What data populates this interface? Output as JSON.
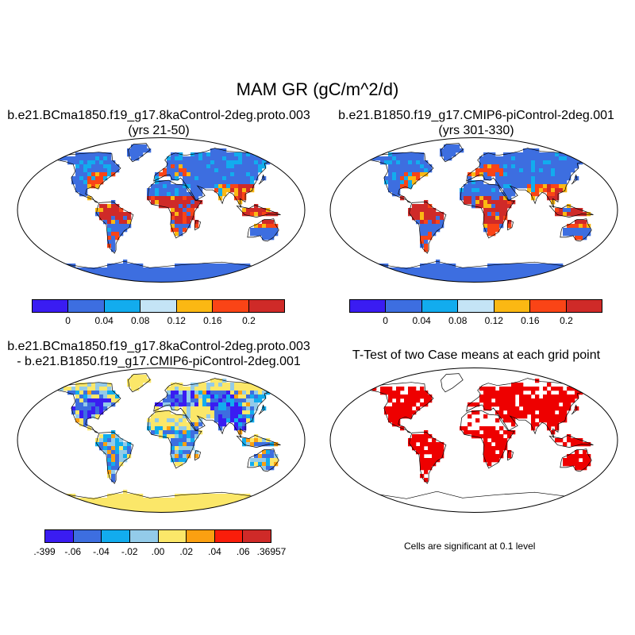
{
  "main_title": "MAM GR (gC/m^2/d)",
  "panels": [
    {
      "title_line1": "b.e21.BCma1850.f19_g17.8kaControl-2deg.proto.003",
      "title_line2": "(yrs 21-50)"
    },
    {
      "title_line1": "b.e21.B1850.f19_g17.CMIP6-piControl-2deg.001",
      "title_line2": "(yrs 301-330)"
    },
    {
      "title_line1": "b.e21.BCma1850.f19_g17.8kaControl-2deg.proto.003",
      "title_line2": "- b.e21.B1850.f19_g17.CMIP6-piControl-2deg.001"
    },
    {
      "title_line1": "T-Test of two Case means at each grid point",
      "title_line2": ""
    }
  ],
  "colorbar_top": {
    "colors": [
      "#3a1cf2",
      "#3d6ee0",
      "#12acee",
      "#c4e4f6",
      "#fbb813",
      "#fa4416",
      "#cf2a28"
    ],
    "labels": [
      "0",
      "0.04",
      "0.08",
      "0.12",
      "0.16",
      "0.2"
    ]
  },
  "colorbar_diff": {
    "colors": [
      "#3a1cf2",
      "#3d6ee0",
      "#12acee",
      "#93cbe9",
      "#fbe769",
      "#fba011",
      "#fa1d0a",
      "#cf2a28"
    ],
    "labels": [
      ".-399",
      "-.06",
      "-.04",
      "-.02",
      ".00",
      ".02",
      ".04",
      ".06",
      ".36957"
    ]
  },
  "significance_note": "Cells are significant at 0.1 level",
  "map_colors": {
    "ocean": "#ffffff",
    "land_outline": "#000000",
    "sig_red": "#ee0000"
  }
}
